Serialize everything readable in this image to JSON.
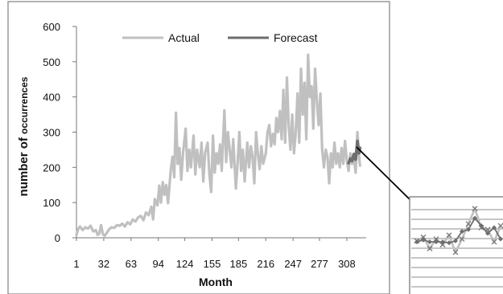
{
  "chart_data": {
    "type": "line",
    "xlabel": "Month",
    "ylabel": "number of occurrences",
    "ylim": [
      0,
      600
    ],
    "xlim": [
      1,
      330
    ],
    "x_ticks": [
      1,
      32,
      63,
      94,
      124,
      155,
      185,
      216,
      247,
      277,
      308
    ],
    "y_ticks": [
      0,
      100,
      200,
      300,
      400,
      500,
      600
    ],
    "legend_position": "top",
    "grid": false,
    "series": [
      {
        "name": "Actual",
        "color": "#c0c0c0",
        "points": [
          [
            1,
            8
          ],
          [
            3,
            25
          ],
          [
            5,
            32
          ],
          [
            8,
            22
          ],
          [
            11,
            30
          ],
          [
            14,
            26
          ],
          [
            17,
            34
          ],
          [
            20,
            18
          ],
          [
            23,
            22
          ],
          [
            25,
            8
          ],
          [
            27,
            12
          ],
          [
            29,
            36
          ],
          [
            31,
            10
          ],
          [
            33,
            6
          ],
          [
            35,
            12
          ],
          [
            38,
            24
          ],
          [
            41,
            30
          ],
          [
            44,
            28
          ],
          [
            47,
            36
          ],
          [
            50,
            34
          ],
          [
            53,
            40
          ],
          [
            56,
            32
          ],
          [
            59,
            44
          ],
          [
            62,
            38
          ],
          [
            65,
            52
          ],
          [
            68,
            46
          ],
          [
            71,
            58
          ],
          [
            74,
            62
          ],
          [
            77,
            50
          ],
          [
            80,
            72
          ],
          [
            83,
            64
          ],
          [
            86,
            88
          ],
          [
            88,
            52
          ],
          [
            90,
            110
          ],
          [
            93,
            92
          ],
          [
            95,
            148
          ],
          [
            97,
            100
          ],
          [
            99,
            158
          ],
          [
            101,
            122
          ],
          [
            103,
            150
          ],
          [
            105,
            98
          ],
          [
            108,
            190
          ],
          [
            110,
            230
          ],
          [
            112,
            172
          ],
          [
            114,
            355
          ],
          [
            116,
            210
          ],
          [
            118,
            255
          ],
          [
            120,
            165
          ],
          [
            122,
            240
          ],
          [
            125,
            310
          ],
          [
            127,
            190
          ],
          [
            129,
            250
          ],
          [
            131,
            200
          ],
          [
            134,
            290
          ],
          [
            136,
            180
          ],
          [
            138,
            250
          ],
          [
            141,
            200
          ],
          [
            143,
            270
          ],
          [
            145,
            160
          ],
          [
            147,
            240
          ],
          [
            150,
            270
          ],
          [
            152,
            180
          ],
          [
            154,
            130
          ],
          [
            156,
            290
          ],
          [
            158,
            185
          ],
          [
            160,
            240
          ],
          [
            162,
            210
          ],
          [
            164,
            265
          ],
          [
            166,
            190
          ],
          [
            169,
            362
          ],
          [
            171,
            215
          ],
          [
            173,
            300
          ],
          [
            175,
            250
          ],
          [
            177,
            200
          ],
          [
            179,
            280
          ],
          [
            182,
            140
          ],
          [
            184,
            210
          ],
          [
            186,
            300
          ],
          [
            188,
            190
          ],
          [
            190,
            250
          ],
          [
            192,
            160
          ],
          [
            195,
            270
          ],
          [
            197,
            200
          ],
          [
            199,
            260
          ],
          [
            201,
            230
          ],
          [
            203,
            155
          ],
          [
            205,
            300
          ],
          [
            207,
            240
          ],
          [
            209,
            195
          ],
          [
            211,
            260
          ],
          [
            213,
            210
          ],
          [
            216,
            240
          ],
          [
            218,
            300
          ],
          [
            220,
            320
          ],
          [
            222,
            260
          ],
          [
            224,
            295
          ],
          [
            226,
            265
          ],
          [
            228,
            340
          ],
          [
            230,
            300
          ],
          [
            232,
            360
          ],
          [
            234,
            280
          ],
          [
            236,
            420
          ],
          [
            238,
            270
          ],
          [
            240,
            455
          ],
          [
            242,
            320
          ],
          [
            244,
            250
          ],
          [
            246,
            350
          ],
          [
            248,
            240
          ],
          [
            250,
            300
          ],
          [
            252,
            410
          ],
          [
            254,
            270
          ],
          [
            256,
            480
          ],
          [
            258,
            350
          ],
          [
            260,
            440
          ],
          [
            262,
            280
          ],
          [
            264,
            520
          ],
          [
            266,
            400
          ],
          [
            268,
            430
          ],
          [
            270,
            310
          ],
          [
            272,
            480
          ],
          [
            274,
            390
          ],
          [
            276,
            320
          ],
          [
            278,
            410
          ],
          [
            280,
            250
          ],
          [
            282,
            200
          ],
          [
            284,
            250
          ],
          [
            286,
            230
          ],
          [
            288,
            155
          ],
          [
            290,
            240
          ],
          [
            292,
            200
          ],
          [
            294,
            270
          ],
          [
            296,
            210
          ],
          [
            298,
            240
          ],
          [
            300,
            200
          ],
          [
            302,
            255
          ],
          [
            304,
            210
          ],
          [
            306,
            275
          ],
          [
            308,
            220
          ],
          [
            310,
            190
          ],
          [
            312,
            240
          ],
          [
            314,
            210
          ],
          [
            316,
            230
          ],
          [
            318,
            185
          ],
          [
            320,
            300
          ],
          [
            322,
            230
          ],
          [
            323,
            205
          ]
        ]
      },
      {
        "name": "Forecast",
        "color": "#6e6e6e",
        "points": [
          [
            310,
            212
          ],
          [
            312,
            225
          ],
          [
            314,
            218
          ],
          [
            316,
            238
          ],
          [
            318,
            222
          ],
          [
            320,
            275
          ],
          [
            322,
            240
          ],
          [
            323,
            255
          ]
        ]
      }
    ]
  },
  "inset": {
    "actual_color": "#c0c0c0",
    "forecast_color": "#6e6e6e",
    "actual_values": [
      0.56,
      0.6,
      0.48,
      0.58,
      0.52,
      0.62,
      0.44,
      0.58,
      0.74,
      0.9,
      0.7,
      0.68,
      0.55,
      0.72
    ],
    "forecast_values": [
      0.55,
      0.57,
      0.55,
      0.55,
      0.55,
      0.54,
      0.56,
      0.66,
      0.68,
      0.8,
      0.72,
      0.64,
      0.7,
      0.58
    ]
  }
}
